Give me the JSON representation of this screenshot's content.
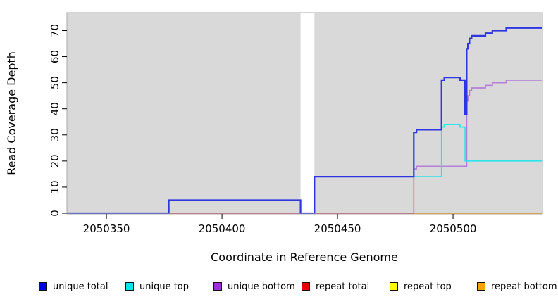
{
  "figure": {
    "x_axis_title": "Coordinate in Reference Genome",
    "y_axis_title": "Read Coverage Depth"
  },
  "legend": {
    "position": "bottom",
    "items": [
      {
        "label": "unique total",
        "color": "#0000e0"
      },
      {
        "label": "unique top",
        "color": "#00e5ee"
      },
      {
        "label": "unique bottom",
        "color": "#9a30d6"
      },
      {
        "label": "repeat total",
        "color": "#e60000"
      },
      {
        "label": "repeat top",
        "color": "#ffff00"
      },
      {
        "label": "repeat bottom",
        "color": "#ffa200"
      }
    ]
  },
  "chart_data": {
    "type": "line",
    "subtype": "step-after",
    "title": "",
    "xlabel": "Coordinate in Reference Genome",
    "ylabel": "Read Coverage Depth",
    "xlim": [
      2050332.9,
      2050538.7
    ],
    "ylim": [
      -0.27,
      76.87
    ],
    "x_ticks": [
      2050350,
      2050400,
      2050450,
      2050500
    ],
    "y_ticks": [
      0,
      10,
      20,
      30,
      40,
      50,
      60,
      70
    ],
    "grid": false,
    "plot_background": "#d9d9d9",
    "gap_region": [
      2050434,
      2050440
    ],
    "series": [
      {
        "name": "repeat top",
        "color": "#f0e800",
        "width": 1.4,
        "points": [
          [
            2050332.9,
            0
          ],
          [
            2050538.7,
            0
          ]
        ]
      },
      {
        "name": "unique bottom",
        "color": "#b77dda",
        "width": 1.7,
        "points": [
          [
            2050332.9,
            0
          ],
          [
            2050483,
            0
          ],
          [
            2050483,
            17
          ],
          [
            2050484.2,
            17
          ],
          [
            2050484.2,
            18
          ],
          [
            2050505.9,
            18
          ],
          [
            2050505.9,
            43
          ],
          [
            2050506.4,
            43
          ],
          [
            2050506.4,
            45
          ],
          [
            2050507.1,
            45
          ],
          [
            2050507.1,
            47
          ],
          [
            2050508,
            47
          ],
          [
            2050508,
            48
          ],
          [
            2050514,
            48
          ],
          [
            2050514,
            49
          ],
          [
            2050517,
            49
          ],
          [
            2050517,
            50
          ],
          [
            2050523,
            50
          ],
          [
            2050523,
            51
          ],
          [
            2050538.7,
            51
          ]
        ]
      },
      {
        "name": "unique top",
        "color": "#2ee3ea",
        "width": 1.7,
        "points": [
          [
            2050332.9,
            0
          ],
          [
            2050377,
            0
          ],
          [
            2050377,
            5
          ],
          [
            2050434,
            5
          ],
          [
            2050434,
            0
          ],
          [
            2050440,
            0
          ],
          [
            2050440,
            14
          ],
          [
            2050495,
            14
          ],
          [
            2050495,
            33
          ],
          [
            2050496.2,
            33
          ],
          [
            2050496.2,
            34
          ],
          [
            2050503,
            34
          ],
          [
            2050503,
            33
          ],
          [
            2050505.2,
            33
          ],
          [
            2050505.2,
            20
          ],
          [
            2050538.7,
            20
          ]
        ]
      },
      {
        "name": "repeat total",
        "color": "#d84f6f",
        "width": 1.5,
        "points": [
          [
            2050332.9,
            0
          ],
          [
            2050538.7,
            0
          ]
        ]
      },
      {
        "name": "repeat bottom",
        "color": "#ff9e00",
        "width": 2,
        "points": [
          [
            2050483,
            0
          ],
          [
            2050538.7,
            0
          ]
        ]
      },
      {
        "name": "unique total",
        "color": "#2d36e0",
        "width": 2.2,
        "points": [
          [
            2050332.9,
            0
          ],
          [
            2050377,
            0
          ],
          [
            2050377,
            5
          ],
          [
            2050434,
            5
          ],
          [
            2050434,
            0
          ],
          [
            2050440,
            0
          ],
          [
            2050440,
            14
          ],
          [
            2050483,
            14
          ],
          [
            2050483,
            31
          ],
          [
            2050484.2,
            31
          ],
          [
            2050484.2,
            32
          ],
          [
            2050495,
            32
          ],
          [
            2050495,
            51
          ],
          [
            2050496.2,
            51
          ],
          [
            2050496.2,
            52
          ],
          [
            2050503,
            52
          ],
          [
            2050503,
            51
          ],
          [
            2050505.2,
            51
          ],
          [
            2050505.2,
            38
          ],
          [
            2050505.9,
            38
          ],
          [
            2050505.9,
            63
          ],
          [
            2050506.4,
            63
          ],
          [
            2050506.4,
            65
          ],
          [
            2050507.1,
            65
          ],
          [
            2050507.1,
            67
          ],
          [
            2050508,
            67
          ],
          [
            2050508,
            68
          ],
          [
            2050514,
            68
          ],
          [
            2050514,
            69
          ],
          [
            2050517,
            69
          ],
          [
            2050517,
            70
          ],
          [
            2050523,
            70
          ],
          [
            2050523,
            71
          ],
          [
            2050538.7,
            71
          ]
        ]
      }
    ]
  }
}
